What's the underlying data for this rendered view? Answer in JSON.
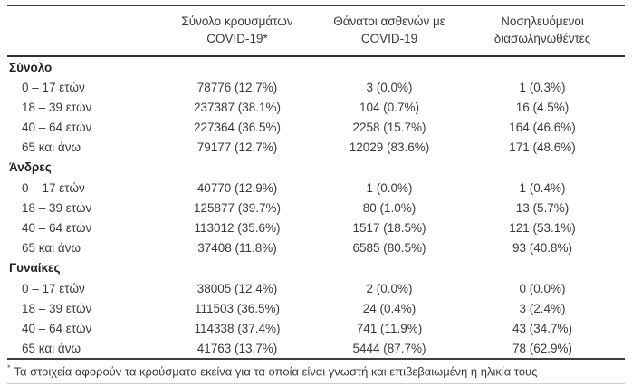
{
  "table": {
    "headers": [
      {
        "line1": "Σύνολο κρουσμάτων",
        "line2": "COVID-19*"
      },
      {
        "line1": "Θάνατοι ασθενών με",
        "line2": "COVID-19"
      },
      {
        "line1": "Νοσηλευόμενοι",
        "line2": "διασωληνωθέντες"
      }
    ],
    "sections": [
      {
        "title": "Σύνολο",
        "rows": [
          {
            "label": "0 – 17 ετών",
            "cases": "78776 (12.7%)",
            "deaths": "3 (0.0%)",
            "intubated": "1 (0.3%)"
          },
          {
            "label": "18 – 39 ετών",
            "cases": "237387 (38.1%)",
            "deaths": "104 (0.7%)",
            "intubated": "16 (4.5%)"
          },
          {
            "label": "40 – 64 ετών",
            "cases": "227364 (36.5%)",
            "deaths": "2258 (15.7%)",
            "intubated": "164 (46.6%)"
          },
          {
            "label": "65 και άνω",
            "cases": "79177 (12.7%)",
            "deaths": "12029 (83.6%)",
            "intubated": "171 (48.6%)"
          }
        ]
      },
      {
        "title": "Άνδρες",
        "rows": [
          {
            "label": "0 – 17 ετών",
            "cases": "40770 (12.9%)",
            "deaths": "1 (0.0%)",
            "intubated": "1 (0.4%)"
          },
          {
            "label": "18 – 39 ετών",
            "cases": "125877 (39.7%)",
            "deaths": "80 (1.0%)",
            "intubated": "13 (5.7%)"
          },
          {
            "label": "40 – 64 ετών",
            "cases": "113012 (35.6%)",
            "deaths": "1517 (18.5%)",
            "intubated": "121 (53.1%)"
          },
          {
            "label": "65 και άνω",
            "cases": "37408 (11.8%)",
            "deaths": "6585 (80.5%)",
            "intubated": "93 (40.8%)"
          }
        ]
      },
      {
        "title": "Γυναίκες",
        "rows": [
          {
            "label": "0 – 17 ετών",
            "cases": "38005 (12.4%)",
            "deaths": "2 (0.0%)",
            "intubated": "0 (0.0%)"
          },
          {
            "label": "18 – 39 ετών",
            "cases": "111503 (36.5%)",
            "deaths": "24 (0.4%)",
            "intubated": "3 (2.4%)"
          },
          {
            "label": "40 – 64 ετών",
            "cases": "114338 (37.4%)",
            "deaths": "741 (11.9%)",
            "intubated": "43 (34.7%)"
          },
          {
            "label": "65 και άνω",
            "cases": "41763 (13.7%)",
            "deaths": "5444 (87.7%)",
            "intubated": "78 (62.9%)"
          }
        ]
      }
    ]
  },
  "footnote": {
    "marker": "*",
    "text": "Τα στοιχεία αφορούν τα κρούσματα εκείνα για τα οποία είναι γνωστή και επιβεβαιωμένη η ηλικία τους"
  }
}
